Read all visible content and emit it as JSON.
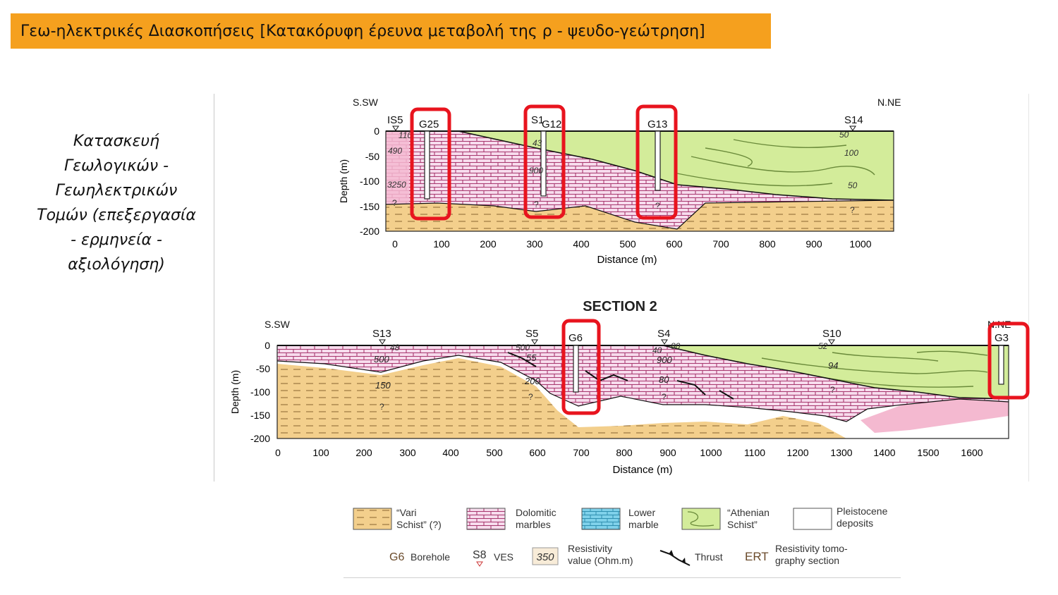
{
  "banner": {
    "title": "Γεω-ηλεκτρικές Διασκοπήσεις [Κατακόρυφη έρευνα μεταβολή της ρ - ψευδο-γεώτρηση]"
  },
  "caption": {
    "lines": [
      "Κατασκευή",
      "Γεωλογικών -",
      "Γεωηλεκτρικών",
      "Τομών (επεξεργασία",
      "- ερμηνεία -",
      "αξιολόγηση)"
    ]
  },
  "colors": {
    "banner": "#f5a01e",
    "vari_schist": "#f3cf8c",
    "dolomitic_marbles": "#cf5fa2",
    "lower_marble": "#7fd1ea",
    "athenian_schist": "#d3ec9a",
    "pleistocene": "#ffffff",
    "highlight": "#e8141e",
    "pink_zone": "#f4b9d0"
  },
  "section1": {
    "dir_left": "S.SW",
    "dir_right": "N.NE",
    "y_ticks": [
      "0",
      "-50",
      "-100",
      "-150",
      "-200"
    ],
    "x_ticks": [
      "0",
      "100",
      "200",
      "300",
      "400",
      "500",
      "600",
      "700",
      "800",
      "900",
      "1000"
    ],
    "ylabel": "Depth (m)",
    "xlabel": "Distance (m)",
    "stations": {
      "is5": "IS5",
      "g25": "G25",
      "s1": "S1",
      "g12": "G12",
      "g13": "G13",
      "s14": "S14"
    },
    "values": {
      "v110": "110",
      "v490": "490",
      "v3250": "3250",
      "v43": "43",
      "v900": "900",
      "v50a": "50",
      "v100": "100",
      "v50b": "50"
    },
    "question": "?"
  },
  "section2": {
    "title": "SECTION 2",
    "dir_left": "S.SW",
    "dir_right": "N.NE",
    "y_ticks": [
      "0",
      "-50",
      "-100",
      "-150",
      "-200"
    ],
    "x_ticks": [
      "0",
      "100",
      "200",
      "300",
      "400",
      "500",
      "600",
      "700",
      "800",
      "900",
      "1000",
      "1100",
      "1200",
      "1300",
      "1400",
      "1500",
      "1600"
    ],
    "ylabel": "Depth (m)",
    "xlabel": "Distance (m)",
    "stations": {
      "s13": "S13",
      "s5": "S5",
      "g6": "G6",
      "s4": "S4",
      "s10": "S10",
      "g3": "G3"
    },
    "values": {
      "v48": "48",
      "v500a": "500",
      "v150": "150",
      "v500b": "500",
      "v55": "55",
      "v200": "200",
      "v40": "40",
      "v80a": "80",
      "v900": "900",
      "v80b": "80",
      "v52": "52",
      "v94": "94"
    },
    "question": "?"
  },
  "legend": {
    "vari": "“Vari\nSchist” (?)",
    "dolomitic": "Dolomitic\nmarbles",
    "lower": "Lower\nmarble",
    "athenian": "“Athenian\nSchist”",
    "pleistocene": "Pleistocene\ndeposits",
    "borehole_sym": "G6",
    "borehole": "Borehole",
    "ves_sym": "S8",
    "ves": "VES",
    "resist_sym": "350",
    "resist": "Resistivity\nvalue (Ohm.m)",
    "thrust": "Thrust",
    "ert_sym": "ERT",
    "ert": "Resistivity tomo-\ngraphy section"
  }
}
